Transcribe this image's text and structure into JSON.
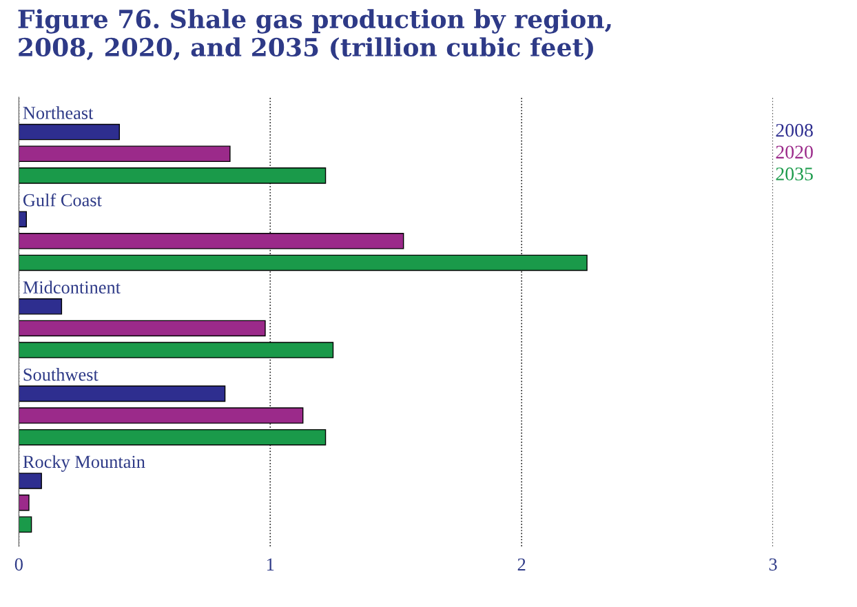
{
  "chart_data": {
    "type": "bar",
    "orientation": "horizontal",
    "title": "Figure 76. Shale gas production by region,\n2008, 2020, and 2035 (trillion cubic feet)",
    "categories": [
      "Northeast",
      "Gulf Coast",
      "Midcontinent",
      "Southwest",
      "Rocky Mountain"
    ],
    "series": [
      {
        "name": "2008",
        "color": "#2e2e8f",
        "values": [
          0.4,
          0.03,
          0.17,
          0.82,
          0.09
        ]
      },
      {
        "name": "2020",
        "color": "#9b2a8a",
        "values": [
          0.84,
          1.53,
          0.98,
          1.13,
          0.04
        ]
      },
      {
        "name": "2035",
        "color": "#1a9a4a",
        "values": [
          1.22,
          2.26,
          1.25,
          1.22,
          0.05
        ]
      }
    ],
    "xlim": [
      0,
      3
    ],
    "xticks": [
      0,
      1,
      2,
      3
    ],
    "grid": "x",
    "legend": "right"
  }
}
